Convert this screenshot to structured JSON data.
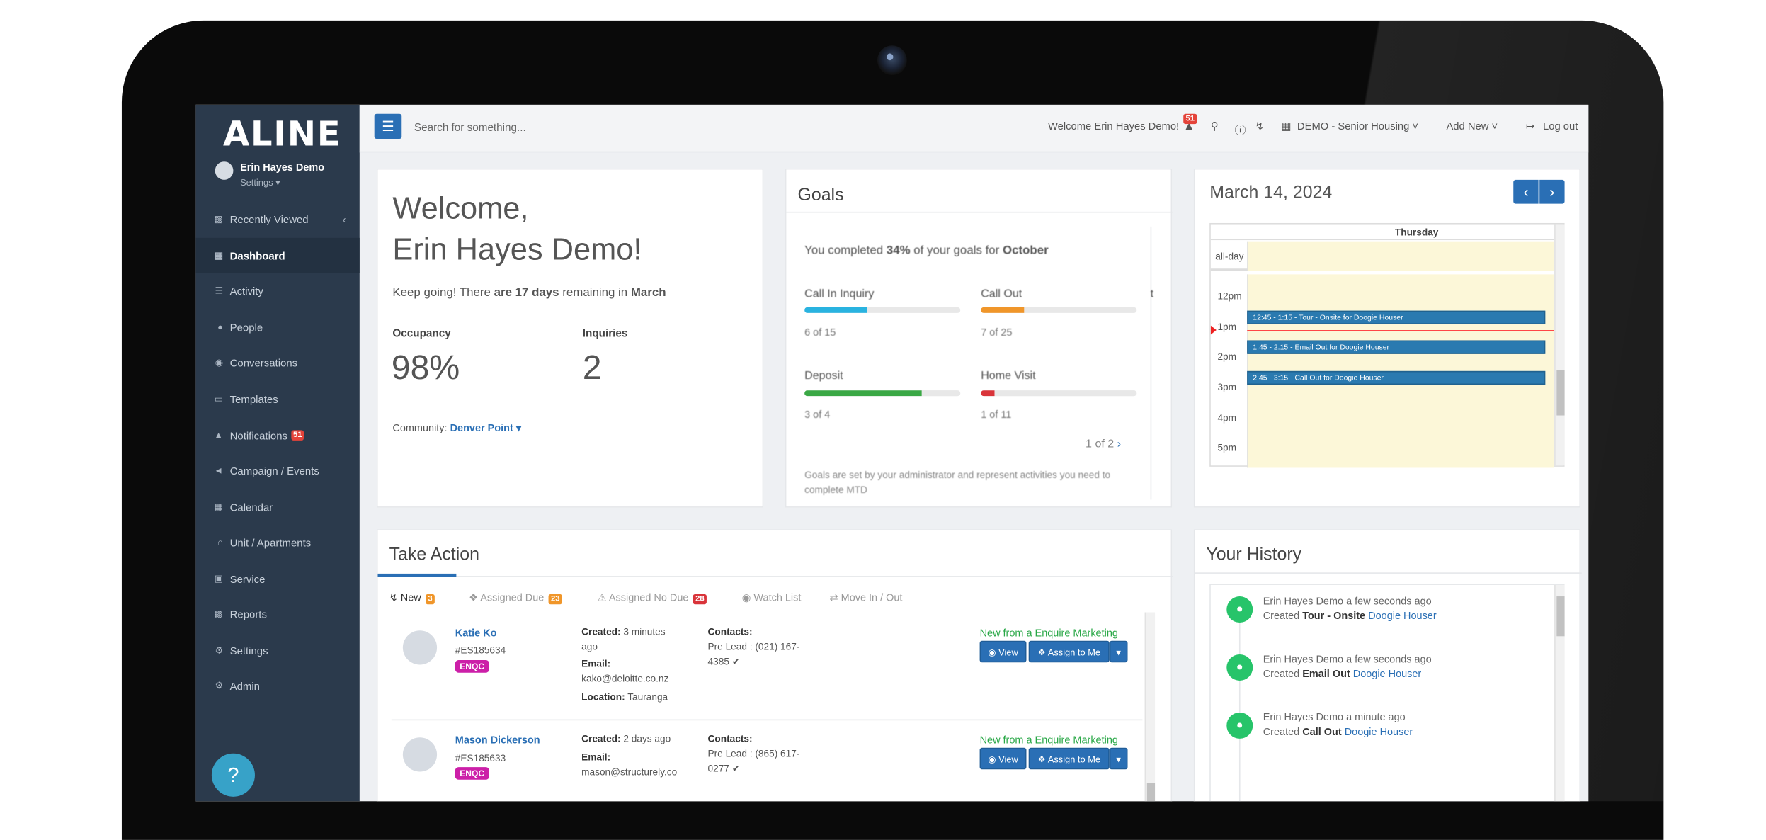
{
  "sidebar": {
    "logo": "ALINE",
    "user_name": "Erin Hayes Demo",
    "settings_label": "Settings ▾",
    "items": [
      {
        "label": "Recently Viewed",
        "icon": "users-icon"
      },
      {
        "label": "Dashboard",
        "icon": "dashboard-icon"
      },
      {
        "label": "Activity",
        "icon": "list-icon"
      },
      {
        "label": "People",
        "icon": "user-icon"
      },
      {
        "label": "Conversations",
        "icon": "chat-icon"
      },
      {
        "label": "Templates",
        "icon": "file-icon"
      },
      {
        "label": "Notifications",
        "icon": "bell-icon",
        "badge": "51"
      },
      {
        "label": "Campaign / Events",
        "icon": "megaphone-icon"
      },
      {
        "label": "Calendar",
        "icon": "calendar-icon"
      },
      {
        "label": "Unit / Apartments",
        "icon": "home-icon"
      },
      {
        "label": "Service",
        "icon": "briefcase-icon"
      },
      {
        "label": "Reports",
        "icon": "chart-icon"
      },
      {
        "label": "Settings",
        "icon": "gear-icon"
      },
      {
        "label": "Admin",
        "icon": "gears-icon"
      }
    ],
    "help": "?"
  },
  "topbar": {
    "search_placeholder": "Search for something...",
    "welcome": "Welcome Erin Hayes Demo!",
    "notification_count": "51",
    "community": "DEMO - Senior Housing",
    "add_new": "Add New",
    "logout": "Log out"
  },
  "welcome": {
    "line1": "Welcome,",
    "line2": "Erin Hayes Demo!",
    "keep_going_pre": "Keep going! There ",
    "keep_going_days": "are 17 days",
    "keep_going_mid": " remaining in ",
    "keep_going_month": "March",
    "occupancy_label": "Occupancy",
    "occupancy_value": "98%",
    "inquiries_label": "Inquiries",
    "inquiries_value": "2",
    "community_label": "Community:",
    "community_value": "Denver Point"
  },
  "goals": {
    "title": "Goals",
    "summary_pre": "You completed ",
    "summary_pct": "34%",
    "summary_mid": " of your goals for ",
    "summary_month": "October",
    "items": [
      {
        "name": "Call In Inquiry",
        "progress": "6 of 15",
        "fraction": 0.4,
        "color": "#29b3e0"
      },
      {
        "name": "Call Out",
        "progress": "7 of 25",
        "fraction": 0.28,
        "color": "#f0962a"
      },
      {
        "name": "Deposit",
        "progress": "3 of 4",
        "fraction": 0.75,
        "color": "#3aa845"
      },
      {
        "name": "Home Visit",
        "progress": "1 of 11",
        "fraction": 0.09,
        "color": "#d9343a"
      }
    ],
    "pager": "1 of 2",
    "footnote": "Goals are set by your administrator and represent activities you need to complete MTD"
  },
  "calendar": {
    "date": "March 14, 2024",
    "day": "Thursday",
    "allday": "all-day",
    "hours": [
      "12pm",
      "1pm",
      "2pm",
      "3pm",
      "4pm",
      "5pm"
    ],
    "events": [
      "12:45 - 1:15 - Tour - Onsite for Doogie Houser",
      "1:45 - 2:15 - Email Out for Doogie Houser",
      "2:45 - 3:15 - Call Out for Doogie Houser"
    ]
  },
  "take_action": {
    "title": "Take Action",
    "tabs": [
      {
        "label": "New",
        "badge": "3",
        "badge_color": "#f0962a"
      },
      {
        "label": "Assigned Due",
        "badge": "23",
        "badge_color": "#f0962a"
      },
      {
        "label": "Assigned No Due",
        "badge": "28",
        "badge_color": "#d9343a"
      },
      {
        "label": "Watch List",
        "badge": ""
      },
      {
        "label": "Move In / Out",
        "badge": ""
      }
    ],
    "leads": [
      {
        "name": "Katie Ko",
        "id": "#ES185634",
        "tag": "ENQC",
        "created_label": "Created:",
        "created": "3 minutes ago",
        "email_label": "Email:",
        "email": "kako@deloitte.co.nz",
        "location_label": "Location:",
        "location": "Tauranga",
        "contacts_label": "Contacts:",
        "contact": "Pre Lead : (021) 167-4385 ✔",
        "source": "New from a Enquire Marketing"
      },
      {
        "name": "Mason Dickerson",
        "id": "#ES185633",
        "tag": "ENQC",
        "created_label": "Created:",
        "created": "2 days ago",
        "email_label": "Email:",
        "email": "mason@structurely.co",
        "contacts_label": "Contacts:",
        "contact": "Pre Lead : (865) 617-0277 ✔",
        "source": "New from a Enquire Marketing"
      }
    ],
    "view_label": "View",
    "assign_label": "Assign to Me"
  },
  "history": {
    "title": "Your History",
    "items": [
      {
        "who": "Erin Hayes Demo a few seconds ago",
        "pre": "Created ",
        "what": "Tour - Onsite",
        "link": "Doogie Houser"
      },
      {
        "who": "Erin Hayes Demo a few seconds ago",
        "pre": "Created ",
        "what": "Email Out",
        "link": "Doogie Houser"
      },
      {
        "who": "Erin Hayes Demo a minute ago",
        "pre": "Created ",
        "what": "Call Out",
        "link": "Doogie Houser"
      }
    ]
  }
}
